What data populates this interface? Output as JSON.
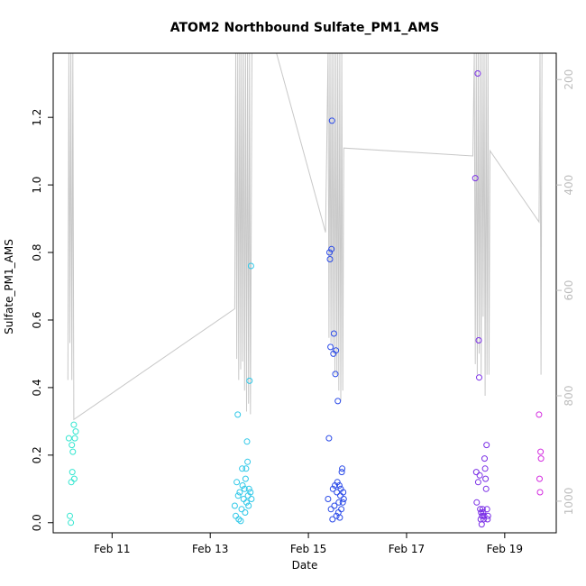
{
  "chart_data": {
    "type": "scatter",
    "title": "ATOM2 Northbound Sulfate_PM1_AMS",
    "xlabel": "Date",
    "ylabel": "Sulfate_PM1_AMS",
    "x_unit": "days in February",
    "xlim": [
      9.8,
      20.05
    ],
    "ylim": [
      -0.03,
      1.39
    ],
    "x_ticks": [
      {
        "value": 11,
        "label": "Feb 11"
      },
      {
        "value": 13,
        "label": "Feb 13"
      },
      {
        "value": 15,
        "label": "Feb 15"
      },
      {
        "value": 17,
        "label": "Feb 17"
      },
      {
        "value": 19,
        "label": "Feb 19"
      }
    ],
    "y_ticks": [
      {
        "value": 0.0,
        "label": "0.0"
      },
      {
        "value": 0.2,
        "label": "0.2"
      },
      {
        "value": 0.4,
        "label": "0.4"
      },
      {
        "value": 0.6,
        "label": "0.6"
      },
      {
        "value": 0.8,
        "label": "0.8"
      },
      {
        "value": 1.0,
        "label": "1.0"
      },
      {
        "value": 1.2,
        "label": "1.2"
      }
    ],
    "y2_reversed": true,
    "y2lim": [
      1060,
      150
    ],
    "y2_ticks": [
      {
        "value": 200,
        "label": "200"
      },
      {
        "value": 400,
        "label": "400"
      },
      {
        "value": 600,
        "label": "600"
      },
      {
        "value": 800,
        "label": "800"
      },
      {
        "value": 1000,
        "label": "1000"
      }
    ],
    "grid": false,
    "marker": "open-circle",
    "color_scale": "time gradient: cyan to blue to magenta",
    "points": [
      {
        "x": 10.12,
        "y": 0.25,
        "color": "#33e6d0"
      },
      {
        "x": 10.14,
        "y": 0.02,
        "color": "#33e6d0"
      },
      {
        "x": 10.16,
        "y": 0.0,
        "color": "#33e6d0"
      },
      {
        "x": 10.17,
        "y": 0.12,
        "color": "#33e6d0"
      },
      {
        "x": 10.18,
        "y": 0.23,
        "color": "#33e6d0"
      },
      {
        "x": 10.19,
        "y": 0.15,
        "color": "#33e6d0"
      },
      {
        "x": 10.2,
        "y": 0.21,
        "color": "#33e6d0"
      },
      {
        "x": 10.22,
        "y": 0.29,
        "color": "#33e6d0"
      },
      {
        "x": 10.23,
        "y": 0.13,
        "color": "#33e6d0"
      },
      {
        "x": 10.24,
        "y": 0.25,
        "color": "#33e6d0"
      },
      {
        "x": 10.26,
        "y": 0.27,
        "color": "#33e6d0"
      },
      {
        "x": 13.5,
        "y": 0.05,
        "color": "#2ec8e8"
      },
      {
        "x": 13.52,
        "y": 0.02,
        "color": "#2ec8e8"
      },
      {
        "x": 13.54,
        "y": 0.12,
        "color": "#2ec8e8"
      },
      {
        "x": 13.56,
        "y": 0.32,
        "color": "#2ec8e8"
      },
      {
        "x": 13.57,
        "y": 0.08,
        "color": "#2ec8e8"
      },
      {
        "x": 13.58,
        "y": 0.01,
        "color": "#2ec8e8"
      },
      {
        "x": 13.6,
        "y": 0.09,
        "color": "#2ec8e8"
      },
      {
        "x": 13.62,
        "y": 0.005,
        "color": "#2ec8e8"
      },
      {
        "x": 13.64,
        "y": 0.04,
        "color": "#2ec8e8"
      },
      {
        "x": 13.65,
        "y": 0.16,
        "color": "#2ec8e8"
      },
      {
        "x": 13.66,
        "y": 0.11,
        "color": "#2ec8e8"
      },
      {
        "x": 13.68,
        "y": 0.07,
        "color": "#2ec8e8"
      },
      {
        "x": 13.7,
        "y": 0.1,
        "color": "#2ec8e8"
      },
      {
        "x": 13.71,
        "y": 0.03,
        "color": "#2ec8e8"
      },
      {
        "x": 13.72,
        "y": 0.13,
        "color": "#2ec8e8"
      },
      {
        "x": 13.73,
        "y": 0.16,
        "color": "#2ec8e8"
      },
      {
        "x": 13.74,
        "y": 0.06,
        "color": "#2ec8e8"
      },
      {
        "x": 13.75,
        "y": 0.24,
        "color": "#2ec8e8"
      },
      {
        "x": 13.76,
        "y": 0.18,
        "color": "#2ec8e8"
      },
      {
        "x": 13.77,
        "y": 0.08,
        "color": "#2ec8e8"
      },
      {
        "x": 13.78,
        "y": 0.05,
        "color": "#2ec8e8"
      },
      {
        "x": 13.79,
        "y": 0.1,
        "color": "#2ec8e8"
      },
      {
        "x": 13.8,
        "y": 0.42,
        "color": "#2ec8e8"
      },
      {
        "x": 13.82,
        "y": 0.09,
        "color": "#2ec8e8"
      },
      {
        "x": 13.83,
        "y": 0.76,
        "color": "#2ec8e8"
      },
      {
        "x": 13.84,
        "y": 0.07,
        "color": "#2ec8e8"
      },
      {
        "x": 15.4,
        "y": 0.07,
        "color": "#2a4ae8"
      },
      {
        "x": 15.42,
        "y": 0.25,
        "color": "#2a4ae8"
      },
      {
        "x": 15.43,
        "y": 0.8,
        "color": "#2a4ae8"
      },
      {
        "x": 15.44,
        "y": 0.78,
        "color": "#2a4ae8"
      },
      {
        "x": 15.45,
        "y": 0.52,
        "color": "#2a4ae8"
      },
      {
        "x": 15.46,
        "y": 0.04,
        "color": "#2a4ae8"
      },
      {
        "x": 15.47,
        "y": 0.81,
        "color": "#2a4ae8"
      },
      {
        "x": 15.48,
        "y": 1.19,
        "color": "#2a4ae8"
      },
      {
        "x": 15.49,
        "y": 0.01,
        "color": "#2a4ae8"
      },
      {
        "x": 15.5,
        "y": 0.1,
        "color": "#2a4ae8"
      },
      {
        "x": 15.51,
        "y": 0.5,
        "color": "#2a4ae8"
      },
      {
        "x": 15.52,
        "y": 0.56,
        "color": "#2a4ae8"
      },
      {
        "x": 15.53,
        "y": 0.05,
        "color": "#2a4ae8"
      },
      {
        "x": 15.54,
        "y": 0.11,
        "color": "#2a4ae8"
      },
      {
        "x": 15.55,
        "y": 0.44,
        "color": "#2a4ae8"
      },
      {
        "x": 15.56,
        "y": 0.51,
        "color": "#2a4ae8"
      },
      {
        "x": 15.57,
        "y": 0.02,
        "color": "#2a4ae8"
      },
      {
        "x": 15.58,
        "y": 0.09,
        "color": "#2a4ae8"
      },
      {
        "x": 15.59,
        "y": 0.12,
        "color": "#2a4ae8"
      },
      {
        "x": 15.6,
        "y": 0.36,
        "color": "#2a4ae8"
      },
      {
        "x": 15.61,
        "y": 0.03,
        "color": "#2a4ae8"
      },
      {
        "x": 15.62,
        "y": 0.06,
        "color": "#2a4ae8"
      },
      {
        "x": 15.63,
        "y": 0.11,
        "color": "#2a4ae8"
      },
      {
        "x": 15.64,
        "y": 0.015,
        "color": "#2a4ae8"
      },
      {
        "x": 15.65,
        "y": 0.08,
        "color": "#2a4ae8"
      },
      {
        "x": 15.66,
        "y": 0.1,
        "color": "#2a4ae8"
      },
      {
        "x": 15.67,
        "y": 0.04,
        "color": "#2a4ae8"
      },
      {
        "x": 15.68,
        "y": 0.15,
        "color": "#2a4ae8"
      },
      {
        "x": 15.69,
        "y": 0.16,
        "color": "#2a4ae8"
      },
      {
        "x": 15.7,
        "y": 0.06,
        "color": "#2a4ae8"
      },
      {
        "x": 15.71,
        "y": 0.09,
        "color": "#2a4ae8"
      },
      {
        "x": 15.72,
        "y": 0.07,
        "color": "#2a4ae8"
      },
      {
        "x": 18.4,
        "y": 1.02,
        "color": "#7a2ee6"
      },
      {
        "x": 18.42,
        "y": 0.15,
        "color": "#7a2ee6"
      },
      {
        "x": 18.43,
        "y": 0.06,
        "color": "#7a2ee6"
      },
      {
        "x": 18.45,
        "y": 1.33,
        "color": "#7a2ee6"
      },
      {
        "x": 18.46,
        "y": 0.12,
        "color": "#7a2ee6"
      },
      {
        "x": 18.47,
        "y": 0.54,
        "color": "#7a2ee6"
      },
      {
        "x": 18.48,
        "y": 0.43,
        "color": "#7a2ee6"
      },
      {
        "x": 18.49,
        "y": 0.14,
        "color": "#7a2ee6"
      },
      {
        "x": 18.5,
        "y": 0.04,
        "color": "#7a2ee6"
      },
      {
        "x": 18.51,
        "y": 0.01,
        "color": "#7a2ee6"
      },
      {
        "x": 18.52,
        "y": 0.03,
        "color": "#7a2ee6"
      },
      {
        "x": 18.53,
        "y": -0.005,
        "color": "#7a2ee6"
      },
      {
        "x": 18.54,
        "y": 0.02,
        "color": "#7a2ee6"
      },
      {
        "x": 18.55,
        "y": 0.04,
        "color": "#7a2ee6"
      },
      {
        "x": 18.56,
        "y": 0.03,
        "color": "#7a2ee6"
      },
      {
        "x": 18.57,
        "y": 0.01,
        "color": "#7a2ee6"
      },
      {
        "x": 18.58,
        "y": 0.02,
        "color": "#7a2ee6"
      },
      {
        "x": 18.59,
        "y": 0.19,
        "color": "#7a2ee6"
      },
      {
        "x": 18.6,
        "y": 0.16,
        "color": "#7a2ee6"
      },
      {
        "x": 18.61,
        "y": 0.13,
        "color": "#7a2ee6"
      },
      {
        "x": 18.62,
        "y": 0.1,
        "color": "#7a2ee6"
      },
      {
        "x": 18.63,
        "y": 0.23,
        "color": "#7a2ee6"
      },
      {
        "x": 18.64,
        "y": 0.04,
        "color": "#7a2ee6"
      },
      {
        "x": 18.65,
        "y": 0.01,
        "color": "#7a2ee6"
      },
      {
        "x": 18.66,
        "y": 0.02,
        "color": "#7a2ee6"
      },
      {
        "x": 19.7,
        "y": 0.32,
        "color": "#d42ee0"
      },
      {
        "x": 19.71,
        "y": 0.13,
        "color": "#d42ee0"
      },
      {
        "x": 19.72,
        "y": 0.09,
        "color": "#d42ee0"
      },
      {
        "x": 19.73,
        "y": 0.21,
        "color": "#d42ee0"
      },
      {
        "x": 19.74,
        "y": 0.19,
        "color": "#d42ee0"
      }
    ],
    "altitude_trace": {
      "color": "#c8c8c8",
      "axis": "right",
      "points": [
        [
          10.1,
          770
        ],
        [
          10.12,
          150
        ],
        [
          10.14,
          700
        ],
        [
          10.16,
          150
        ],
        [
          10.18,
          770
        ],
        [
          10.2,
          150
        ],
        [
          10.22,
          845
        ],
        [
          13.5,
          635
        ],
        [
          13.52,
          150
        ],
        [
          13.54,
          730
        ],
        [
          13.56,
          150
        ],
        [
          13.58,
          770
        ],
        [
          13.6,
          150
        ],
        [
          13.62,
          750
        ],
        [
          13.64,
          150
        ],
        [
          13.66,
          735
        ],
        [
          13.68,
          150
        ],
        [
          13.7,
          790
        ],
        [
          13.72,
          150
        ],
        [
          13.74,
          830
        ],
        [
          13.76,
          150
        ],
        [
          13.78,
          815
        ],
        [
          13.8,
          150
        ],
        [
          13.82,
          835
        ],
        [
          13.85,
          150
        ],
        [
          14.35,
          150
        ],
        [
          15.35,
          490
        ],
        [
          15.4,
          150
        ],
        [
          15.42,
          690
        ],
        [
          15.44,
          150
        ],
        [
          15.46,
          700
        ],
        [
          15.48,
          150
        ],
        [
          15.5,
          720
        ],
        [
          15.52,
          150
        ],
        [
          15.54,
          760
        ],
        [
          15.56,
          150
        ],
        [
          15.58,
          760
        ],
        [
          15.6,
          150
        ],
        [
          15.62,
          790
        ],
        [
          15.64,
          150
        ],
        [
          15.66,
          810
        ],
        [
          15.68,
          150
        ],
        [
          15.7,
          790
        ],
        [
          15.72,
          330
        ],
        [
          18.35,
          345
        ],
        [
          18.38,
          150
        ],
        [
          18.4,
          740
        ],
        [
          18.42,
          150
        ],
        [
          18.44,
          760
        ],
        [
          18.46,
          150
        ],
        [
          18.48,
          720
        ],
        [
          18.5,
          150
        ],
        [
          18.52,
          760
        ],
        [
          18.54,
          150
        ],
        [
          18.56,
          650
        ],
        [
          18.58,
          150
        ],
        [
          18.6,
          800
        ],
        [
          18.62,
          150
        ],
        [
          18.64,
          760
        ],
        [
          18.66,
          150
        ],
        [
          18.68,
          760
        ],
        [
          18.7,
          335
        ],
        [
          19.7,
          470
        ],
        [
          19.72,
          150
        ],
        [
          19.74,
          760
        ],
        [
          19.76,
          150
        ]
      ]
    }
  }
}
